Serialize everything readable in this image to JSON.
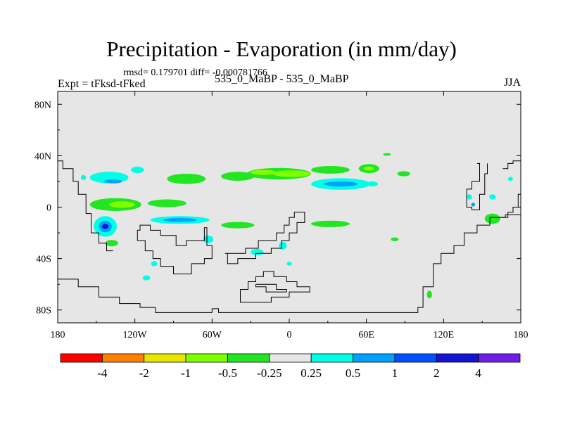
{
  "chart_data": {
    "type": "heatmap",
    "title": "Precipitation - Evaporation (in mm/day)",
    "stats_text": "rmsd= 0.179701 diff= -0.000781766",
    "left_label": "Expt = tFksd-tFked",
    "center_label": "535_0_MaBP - 535_0_MaBP",
    "season_label": "JJA",
    "x_axis": {
      "range": [
        -180,
        180
      ],
      "tick_values": [
        -180,
        -120,
        -60,
        0,
        60,
        120,
        180
      ],
      "tick_labels": [
        "180",
        "120W",
        "60W",
        "0",
        "60E",
        "120E",
        "180"
      ]
    },
    "y_axis": {
      "range": [
        -90,
        90
      ],
      "tick_values": [
        80,
        40,
        0,
        -40,
        -80
      ],
      "tick_labels": [
        "80N",
        "40N",
        "0",
        "40S",
        "80S"
      ]
    },
    "background_color": "#e6e6e6",
    "colorbar": {
      "colors": [
        "#ff0000",
        "#ff8000",
        "#e6e600",
        "#80ff00",
        "#22e622",
        "#e6e6e6",
        "#00ffe6",
        "#00a0ff",
        "#0050ff",
        "#1414d2",
        "#6e1ee6"
      ],
      "labels": [
        "-4",
        "-2",
        "-1",
        "-0.5",
        "-0.25",
        "0.25",
        "0.5",
        "1",
        "2",
        "4"
      ]
    },
    "regions": [
      {
        "color": "#22e622",
        "lat": 2,
        "lon": -135,
        "w": 40,
        "h": 10
      },
      {
        "color": "#80ff00",
        "lat": 2,
        "lon": -130,
        "w": 20,
        "h": 5
      },
      {
        "color": "#22e622",
        "lat": 3,
        "lon": -95,
        "w": 30,
        "h": 6
      },
      {
        "color": "#22e622",
        "lat": 22,
        "lon": -80,
        "w": 30,
        "h": 8
      },
      {
        "color": "#22e622",
        "lat": 24,
        "lon": -40,
        "w": 26,
        "h": 7
      },
      {
        "color": "#22e622",
        "lat": 26,
        "lon": -8,
        "w": 50,
        "h": 9
      },
      {
        "color": "#80ff00",
        "lat": 27,
        "lon": -20,
        "w": 20,
        "h": 4
      },
      {
        "color": "#80ff00",
        "lat": 26,
        "lon": 2,
        "w": 30,
        "h": 5
      },
      {
        "color": "#22e622",
        "lat": 29,
        "lon": 32,
        "w": 30,
        "h": 6
      },
      {
        "color": "#22e622",
        "lat": 30,
        "lon": 62,
        "w": 16,
        "h": 7
      },
      {
        "color": "#80ff00",
        "lat": 30,
        "lon": 62,
        "w": 8,
        "h": 3
      },
      {
        "color": "#22e622",
        "lat": 41,
        "lon": 76,
        "w": 6,
        "h": 2
      },
      {
        "color": "#22e622",
        "lat": 26,
        "lon": 89,
        "w": 10,
        "h": 4
      },
      {
        "color": "#00ffe6",
        "lat": 18,
        "lon": 40,
        "w": 46,
        "h": 9
      },
      {
        "color": "#00a0ff",
        "lat": 18,
        "lon": 40,
        "w": 26,
        "h": 4
      },
      {
        "color": "#00ffe6",
        "lat": 18,
        "lon": 64,
        "w": 10,
        "h": 4
      },
      {
        "color": "#00ffe6",
        "lat": 23,
        "lon": -140,
        "w": 30,
        "h": 9
      },
      {
        "color": "#00a0ff",
        "lat": 20,
        "lon": -137,
        "w": 14,
        "h": 3
      },
      {
        "color": "#00ffe6",
        "lat": 29,
        "lon": -118,
        "w": 10,
        "h": 5
      },
      {
        "color": "#00ffe6",
        "lat": -10,
        "lon": -85,
        "w": 46,
        "h": 6
      },
      {
        "color": "#00a0ff",
        "lat": -10,
        "lon": -85,
        "w": 26,
        "h": 3
      },
      {
        "color": "#00ffe6",
        "lat": -15,
        "lon": -143,
        "w": 18,
        "h": 16
      },
      {
        "color": "#00a0ff",
        "lat": -15,
        "lon": -143,
        "w": 10,
        "h": 9
      },
      {
        "color": "#1414d2",
        "lat": -15,
        "lon": -143,
        "w": 5,
        "h": 4
      },
      {
        "color": "#22e622",
        "lat": -28,
        "lon": -138,
        "w": 10,
        "h": 5
      },
      {
        "color": "#22e622",
        "lat": -14,
        "lon": -40,
        "w": 26,
        "h": 5
      },
      {
        "color": "#22e622",
        "lat": -13,
        "lon": 32,
        "w": 30,
        "h": 5
      },
      {
        "color": "#22e622",
        "lat": -9,
        "lon": 158,
        "w": 12,
        "h": 8
      },
      {
        "color": "#22e622",
        "lat": -25,
        "lon": 82,
        "w": 6,
        "h": 3
      },
      {
        "color": "#22e622",
        "lat": -68,
        "lon": 109,
        "w": 4,
        "h": 6
      },
      {
        "color": "#00ffe6",
        "lat": -35,
        "lon": -25,
        "w": 10,
        "h": 5
      },
      {
        "color": "#00ffe6",
        "lat": -30,
        "lon": -5,
        "w": 6,
        "h": 6
      },
      {
        "color": "#00ffe6",
        "lat": -25,
        "lon": -63,
        "w": 8,
        "h": 6
      },
      {
        "color": "#00ffe6",
        "lat": -44,
        "lon": -105,
        "w": 5,
        "h": 4
      },
      {
        "color": "#00ffe6",
        "lat": -55,
        "lon": -111,
        "w": 6,
        "h": 4
      },
      {
        "color": "#00ffe6",
        "lat": -44,
        "lon": 0,
        "w": 4,
        "h": 3
      },
      {
        "color": "#00ffe6",
        "lat": 8,
        "lon": 158,
        "w": 5,
        "h": 4
      },
      {
        "color": "#00ffe6",
        "lat": 8,
        "lon": 140,
        "w": 4,
        "h": 4
      },
      {
        "color": "#00ffe6",
        "lat": 22,
        "lon": 172,
        "w": 4,
        "h": 3
      },
      {
        "color": "#00ffe6",
        "lat": 23,
        "lon": -160,
        "w": 4,
        "h": 4
      },
      {
        "color": "#00a0ff",
        "lat": 2,
        "lon": 143,
        "w": 3,
        "h": 3
      }
    ],
    "coastlines": [
      {
        "name": "americas",
        "pts": [
          [
            -180,
            36
          ],
          [
            -176,
            36
          ],
          [
            -176,
            30
          ],
          [
            -168,
            30
          ],
          [
            -168,
            20
          ],
          [
            -164,
            20
          ],
          [
            -164,
            10
          ],
          [
            -158,
            10
          ],
          [
            -158,
            -5
          ],
          [
            -154,
            -5
          ],
          [
            -154,
            -20
          ],
          [
            -148,
            -20
          ],
          [
            -148,
            -28
          ],
          [
            -142,
            -28
          ],
          [
            -142,
            -34
          ],
          [
            -137,
            -34
          ]
        ]
      },
      {
        "name": "antarctica",
        "pts": [
          [
            -180,
            -56
          ],
          [
            -164,
            -56
          ],
          [
            -164,
            -62
          ],
          [
            -148,
            -62
          ],
          [
            -148,
            -70
          ],
          [
            -132,
            -70
          ],
          [
            -132,
            -75
          ],
          [
            -116,
            -75
          ],
          [
            -116,
            -78
          ],
          [
            -104,
            -78
          ],
          [
            -104,
            -82
          ],
          [
            -60,
            -82
          ],
          [
            -60,
            -79
          ],
          [
            -55,
            -79
          ],
          [
            -55,
            -82
          ],
          [
            20,
            -82
          ],
          [
            60,
            -82
          ],
          [
            100,
            -82
          ],
          [
            100,
            -78
          ],
          [
            104,
            -78
          ],
          [
            104,
            -62
          ],
          [
            112,
            -62
          ],
          [
            112,
            -44
          ],
          [
            118,
            -44
          ],
          [
            118,
            -36
          ],
          [
            128,
            -36
          ],
          [
            128,
            -30
          ],
          [
            136,
            -30
          ],
          [
            136,
            -20
          ],
          [
            146,
            -20
          ],
          [
            146,
            -14
          ],
          [
            156,
            -14
          ],
          [
            156,
            -8
          ],
          [
            168,
            -8
          ],
          [
            168,
            -6
          ],
          [
            180,
            -6
          ]
        ]
      },
      {
        "name": "continent-a",
        "pts": [
          [
            -118,
            -18
          ],
          [
            -116,
            -18
          ],
          [
            -116,
            -14
          ],
          [
            -108,
            -14
          ],
          [
            -108,
            -18
          ],
          [
            -100,
            -18
          ],
          [
            -100,
            -22
          ],
          [
            -88,
            -22
          ],
          [
            -88,
            -30
          ],
          [
            -80,
            -30
          ],
          [
            -80,
            -26
          ],
          [
            -66,
            -26
          ],
          [
            -66,
            -16
          ],
          [
            -64,
            -16
          ],
          [
            -64,
            -30
          ],
          [
            -60,
            -30
          ],
          [
            -60,
            -40
          ],
          [
            -66,
            -40
          ],
          [
            -66,
            -44
          ],
          [
            -76,
            -44
          ],
          [
            -76,
            -52
          ],
          [
            -90,
            -52
          ],
          [
            -90,
            -46
          ],
          [
            -100,
            -46
          ],
          [
            -100,
            -40
          ],
          [
            -106,
            -40
          ],
          [
            -106,
            -34
          ],
          [
            -112,
            -34
          ],
          [
            -112,
            -26
          ],
          [
            -118,
            -26
          ],
          [
            -118,
            -18
          ]
        ]
      },
      {
        "name": "continent-b",
        "pts": [
          [
            -50,
            -36
          ],
          [
            -34,
            -36
          ],
          [
            -34,
            -32
          ],
          [
            -24,
            -32
          ],
          [
            -24,
            -26
          ],
          [
            -10,
            -26
          ],
          [
            -10,
            -20
          ],
          [
            -4,
            -20
          ],
          [
            -4,
            -14
          ],
          [
            0,
            -14
          ],
          [
            0,
            -8
          ],
          [
            4,
            -8
          ],
          [
            4,
            -4
          ],
          [
            12,
            -4
          ],
          [
            12,
            -12
          ],
          [
            6,
            -12
          ],
          [
            6,
            -20
          ],
          [
            0,
            -20
          ],
          [
            0,
            -26
          ],
          [
            -6,
            -26
          ],
          [
            -6,
            -32
          ],
          [
            -14,
            -32
          ],
          [
            -14,
            -36
          ],
          [
            -26,
            -36
          ],
          [
            -26,
            -40
          ],
          [
            -40,
            -40
          ],
          [
            -40,
            -44
          ],
          [
            -48,
            -44
          ],
          [
            -48,
            -36
          ],
          [
            -50,
            -36
          ]
        ]
      },
      {
        "name": "island-south",
        "pts": [
          [
            -20,
            -50
          ],
          [
            -12,
            -50
          ],
          [
            -12,
            -54
          ],
          [
            -2,
            -54
          ],
          [
            -2,
            -58
          ],
          [
            6,
            -58
          ],
          [
            6,
            -62
          ],
          [
            16,
            -62
          ],
          [
            16,
            -66
          ],
          [
            0,
            -66
          ],
          [
            0,
            -70
          ],
          [
            -14,
            -70
          ],
          [
            -14,
            -74
          ],
          [
            -38,
            -74
          ],
          [
            -38,
            -64
          ],
          [
            -32,
            -64
          ],
          [
            -32,
            -58
          ],
          [
            -26,
            -58
          ],
          [
            -26,
            -54
          ],
          [
            -20,
            -54
          ],
          [
            -20,
            -50
          ]
        ]
      },
      {
        "name": "island-south-inner",
        "pts": [
          [
            -26,
            -60
          ],
          [
            -10,
            -60
          ],
          [
            -10,
            -64
          ],
          [
            -2,
            -64
          ],
          [
            -2,
            -66
          ],
          [
            -18,
            -66
          ],
          [
            -18,
            -62
          ],
          [
            -26,
            -62
          ],
          [
            -26,
            -60
          ]
        ]
      },
      {
        "name": "asia-east",
        "pts": [
          [
            146,
            34
          ],
          [
            148,
            34
          ],
          [
            148,
            20
          ],
          [
            142,
            20
          ],
          [
            142,
            14
          ],
          [
            138,
            14
          ],
          [
            138,
            0
          ],
          [
            142,
            0
          ],
          [
            142,
            -2
          ],
          [
            148,
            -2
          ],
          [
            148,
            10
          ],
          [
            152,
            10
          ],
          [
            152,
            26
          ],
          [
            154,
            26
          ],
          [
            154,
            34
          ]
        ]
      },
      {
        "name": "pacific-island",
        "pts": [
          [
            166,
            30
          ],
          [
            170,
            30
          ],
          [
            170,
            34
          ],
          [
            174,
            34
          ],
          [
            174,
            36
          ],
          [
            180,
            36
          ]
        ]
      },
      {
        "name": "pacific-east",
        "pts": [
          [
            180,
            10
          ],
          [
            178,
            10
          ],
          [
            178,
            0
          ],
          [
            174,
            0
          ],
          [
            174,
            -4
          ],
          [
            170,
            -4
          ],
          [
            170,
            -8
          ],
          [
            164,
            -8
          ]
        ]
      }
    ]
  }
}
